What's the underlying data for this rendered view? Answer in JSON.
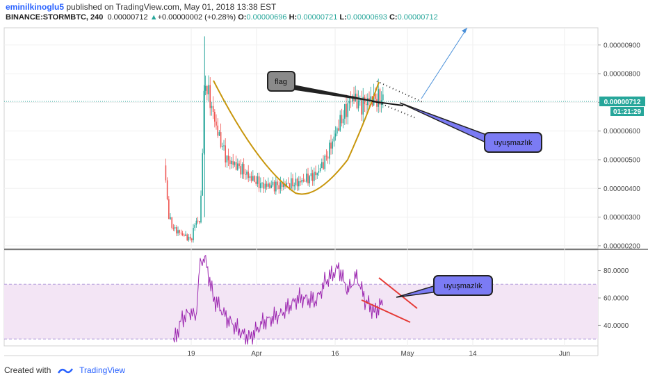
{
  "header": {
    "user": "eminilkinoglu5",
    "published": "published on TradingView.com, May 01, 2018 13:38 EST",
    "symbol": "BINANCE:STORMBTC, 240",
    "last": "0.00000712",
    "change_arrow": "▲",
    "change": "+0.00000002 (+0.28%)",
    "o_label": "O:",
    "o": "0.00000696",
    "h_label": "H:",
    "h": "0.00000721",
    "l_label": "L:",
    "l": "0.00000693",
    "c_label": "C:",
    "c": "0.00000712"
  },
  "footer": {
    "created_with": "Created with",
    "brand": "TradingView"
  },
  "colors": {
    "up": "#26a69a",
    "down": "#ef5350",
    "rsi": "#9c27b0",
    "band": "#f3e5f5",
    "cup": "#c8960c",
    "callout": "#7b7bf4",
    "flag_box": "#8a8a8a",
    "trend_red": "#e53935",
    "projection": "#4a90d9"
  },
  "chart_data": [
    {
      "type": "candlestick",
      "title": "BINANCE:STORMBTC, 240",
      "y_unit": "BTC",
      "ylim": [
        1.9e-06,
        9.6e-06
      ],
      "y_ticks": [
        "0.00000900",
        "0.00000800",
        "0.00000700",
        "0.00000600",
        "0.00000500",
        "0.00000400",
        "0.00000300",
        "0.00000200"
      ],
      "x_ticks": [
        "19",
        "Apr",
        "16",
        "May",
        "14",
        "Jun"
      ],
      "last_price_label": "0.00000712",
      "countdown_label": "01:21:29",
      "approx_close_series": [
        [
          "Mar 13",
          4.8e-06
        ],
        [
          "Mar 14",
          3e-06
        ],
        [
          "Mar 15",
          2.6e-06
        ],
        [
          "Mar 17",
          2.4e-06
        ],
        [
          "Mar 19",
          2.2e-06
        ],
        [
          "Mar 20",
          2.9e-06
        ],
        [
          "Mar 21",
          2.8e-06
        ],
        [
          "Mar 22",
          7.8e-06
        ],
        [
          "Mar 23",
          7.2e-06
        ],
        [
          "Mar 25",
          5.9e-06
        ],
        [
          "Mar 27",
          5e-06
        ],
        [
          "Mar 30",
          4.7e-06
        ],
        [
          "Apr 01",
          4.4e-06
        ],
        [
          "Apr 04",
          4.1e-06
        ],
        [
          "Apr 08",
          4.1e-06
        ],
        [
          "Apr 12",
          4.2e-06
        ],
        [
          "Apr 16",
          4.5e-06
        ],
        [
          "Apr 18",
          5e-06
        ],
        [
          "Apr 21",
          6.2e-06
        ],
        [
          "Apr 24",
          7.2e-06
        ],
        [
          "Apr 26",
          6.9e-06
        ],
        [
          "Apr 28",
          7.1e-06
        ],
        [
          "May 01",
          7.12e-06
        ]
      ],
      "annotations": [
        {
          "label": "flag"
        },
        {
          "label": "uyuşmazlık"
        }
      ]
    },
    {
      "type": "line",
      "title": "",
      "ylim": [
        25,
        95
      ],
      "y_ticks": [
        "80.0000",
        "60.0000",
        "40.0000"
      ],
      "band": [
        30,
        70
      ],
      "approx_series": [
        [
          "Mar 15",
          27
        ],
        [
          "Mar 17",
          45
        ],
        [
          "Mar 19",
          50
        ],
        [
          "Mar 20",
          45
        ],
        [
          "Mar 21",
          85
        ],
        [
          "Mar 22",
          90
        ],
        [
          "Mar 24",
          60
        ],
        [
          "Mar 27",
          45
        ],
        [
          "Mar 30",
          35
        ],
        [
          "Apr 01",
          30
        ],
        [
          "Apr 04",
          42
        ],
        [
          "Apr 08",
          48
        ],
        [
          "Apr 12",
          60
        ],
        [
          "Apr 16",
          58
        ],
        [
          "Apr 18",
          72
        ],
        [
          "Apr 21",
          82
        ],
        [
          "Apr 23",
          65
        ],
        [
          "Apr 25",
          76
        ],
        [
          "Apr 27",
          58
        ],
        [
          "Apr 29",
          50
        ],
        [
          "May 01",
          57
        ]
      ],
      "annotations": [
        {
          "label": "uyuşmazlık"
        }
      ]
    }
  ]
}
